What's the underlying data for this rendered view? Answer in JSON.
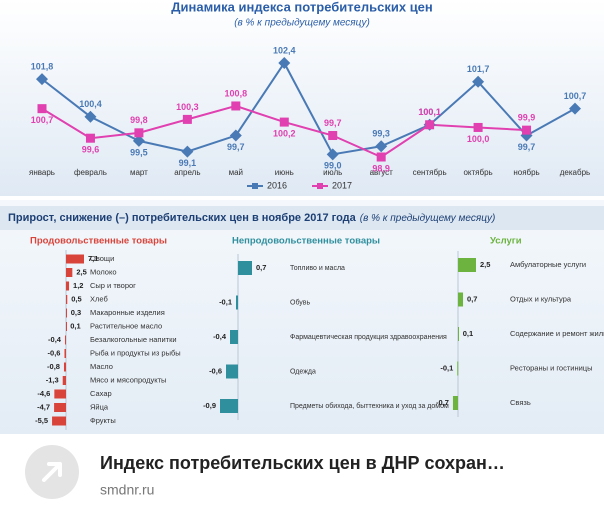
{
  "chart_data": [
    {
      "type": "line",
      "title": "Динамика индекса потребительских цен",
      "subtitle": "(в % к предыдущему месяцу)",
      "categories": [
        "январь",
        "февраль",
        "март",
        "апрель",
        "май",
        "июнь",
        "июль",
        "август",
        "сентябрь",
        "октябрь",
        "ноябрь",
        "декабрь"
      ],
      "series": [
        {
          "name": "2016",
          "color": "#4a7ab5",
          "marker": "diamond",
          "values": [
            101.8,
            100.4,
            99.5,
            99.1,
            99.7,
            102.4,
            99.0,
            99.3,
            100.1,
            101.7,
            99.7,
            100.7
          ],
          "value_labels": [
            "101,8",
            "100,4",
            "99,5",
            "99,1",
            "99,7",
            "102,4",
            "99,0",
            "99,3",
            "100,1",
            "101,7",
            "99,7",
            "100,7"
          ]
        },
        {
          "name": "2017",
          "color": "#e040b0",
          "marker": "square",
          "values": [
            100.7,
            99.6,
            99.8,
            100.3,
            100.8,
            100.2,
            99.7,
            98.9,
            100.1,
            100.0,
            99.9,
            null
          ],
          "value_labels": [
            "100,7",
            "99,6",
            "99,8",
            "100,3",
            "100,8",
            "100,2",
            "99,7",
            "98,9",
            "100,1",
            "100,0",
            "99,9",
            null
          ]
        }
      ],
      "legend": "bottom"
    },
    {
      "type": "bar",
      "title": "Продовольственные товары",
      "color": "#d9443a",
      "categories": [
        "Овощи",
        "Молоко",
        "Сыр и творог",
        "Хлеб",
        "Макаронные изделия",
        "Растительное масло",
        "Безалкогольные напитки",
        "Рыба и продукты из рыбы",
        "Масло",
        "Мясо и мясопродукты",
        "Сахар",
        "Яйца",
        "Фрукты"
      ],
      "values": [
        7.1,
        2.5,
        1.2,
        0.5,
        0.3,
        0.1,
        -0.4,
        -0.6,
        -0.8,
        -1.3,
        -4.6,
        -4.7,
        -5.5
      ],
      "value_labels": [
        "7,1",
        "2,5",
        "1,2",
        "0,5",
        "0,3",
        "0,1",
        "-0,4",
        "-0,6",
        "-0,8",
        "-1,3",
        "-4,6",
        "-4,7",
        "-5,5"
      ]
    },
    {
      "type": "bar",
      "title": "Непродовольственные товары",
      "color": "#2f8f9d",
      "categories": [
        "Топливо и масла",
        "Обувь",
        "Фармацевтическая продукция здравоохранения",
        "Одежда",
        "Предметы обихода, быттехника и уход за домом"
      ],
      "values": [
        0.7,
        -0.1,
        -0.4,
        -0.6,
        -0.9
      ],
      "value_labels": [
        "0,7",
        "-0,1",
        "-0,4",
        "-0,6",
        "-0,9"
      ]
    },
    {
      "type": "bar",
      "title": "Услуги",
      "color": "#6cb33f",
      "categories": [
        "Амбулаторные услуги",
        "Отдых и культура",
        "Содержание и ремонт жилья",
        "Рестораны и гостиницы",
        "Связь"
      ],
      "values": [
        2.5,
        0.7,
        0.1,
        -0.1,
        -0.7
      ],
      "value_labels": [
        "2,5",
        "0,7",
        "0,1",
        "-0,1",
        "-0,7"
      ]
    }
  ],
  "bar_section": {
    "title": "Прирост, снижение (–) потребительских цен в ноябре 2017 года",
    "subtitle": "(в % к предыдущему месяцу)"
  },
  "card": {
    "title": "Индекс потребительских цен в ДНР сохран…",
    "domain": "smdnr.ru"
  }
}
